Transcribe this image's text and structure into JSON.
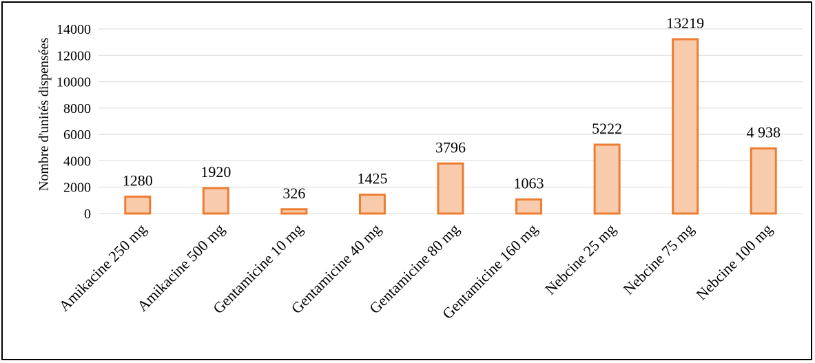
{
  "chart_data": {
    "type": "bar",
    "ylabel": "Nombre d'unités dispensées",
    "xlabel": "",
    "title": "",
    "ylim": [
      0,
      14000
    ],
    "yticks": [
      0,
      2000,
      4000,
      6000,
      8000,
      10000,
      12000,
      14000
    ],
    "grid": true,
    "categories": [
      "Amikacine 250 mg",
      "Amikacine 500 mg",
      "Gentamicine 10 mg",
      "Gentamicine 40 mg",
      "Gentamicine 80 mg",
      "Gentamicine 160 mg",
      "Nebcine 25 mg",
      "Nebcine 75 mg",
      "Nebcine 100 mg"
    ],
    "values": [
      1280,
      1920,
      326,
      1425,
      3796,
      1063,
      5222,
      13219,
      4938
    ],
    "data_labels": [
      "1280",
      "1920",
      "326",
      "1425",
      "3796",
      "1063",
      "5222",
      "13219",
      "4 938"
    ],
    "colors": {
      "bar_fill": "#f8cbad",
      "bar_stroke": "#ed7d31",
      "grid": "#d9d9d9"
    }
  }
}
